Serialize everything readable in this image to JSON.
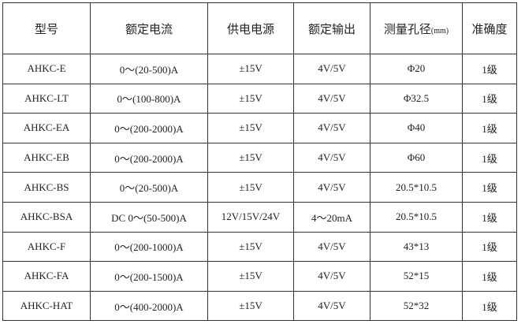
{
  "headers": [
    "型号",
    "额定电流",
    "供电电源",
    "额定输出",
    "测量孔径",
    "准确度"
  ],
  "header_unit": "(mm)",
  "rows": [
    [
      "AHKC-E",
      "0～(20-500)A",
      "±15V",
      "4V/5V",
      "Φ20",
      "1级"
    ],
    [
      "AHKC-LT",
      "0～(100-800)A",
      "±15V",
      "4V/5V",
      "Φ32.5",
      "1级"
    ],
    [
      "AHKC-EA",
      "0～(200-2000)A",
      "±15V",
      "4V/5V",
      "Φ40",
      "1级"
    ],
    [
      "AHKC-EB",
      "0～(200-2000)A",
      "±15V",
      "4V/5V",
      "Φ60",
      "1级"
    ],
    [
      "AHKC-BS",
      "0～(20-500)A",
      "±15V",
      "4V/5V",
      "20.5*10.5",
      "1级"
    ],
    [
      "AHKC-BSA",
      "DC 0～(50-500)A",
      "12V/15V/24V",
      "4～20mA",
      "20.5*10.5",
      "1级"
    ],
    [
      "AHKC-F",
      "0～(200-1000)A",
      "±15V",
      "4V/5V",
      "43*13",
      "1级"
    ],
    [
      "AHKC-FA",
      "0～(200-1500)A",
      "±15V",
      "4V/5V",
      "52*15",
      "1级"
    ],
    [
      "AHKC-HAT",
      "0～(400-2000)A",
      "±15V",
      "4V/5V",
      "52*32",
      "1级"
    ]
  ]
}
